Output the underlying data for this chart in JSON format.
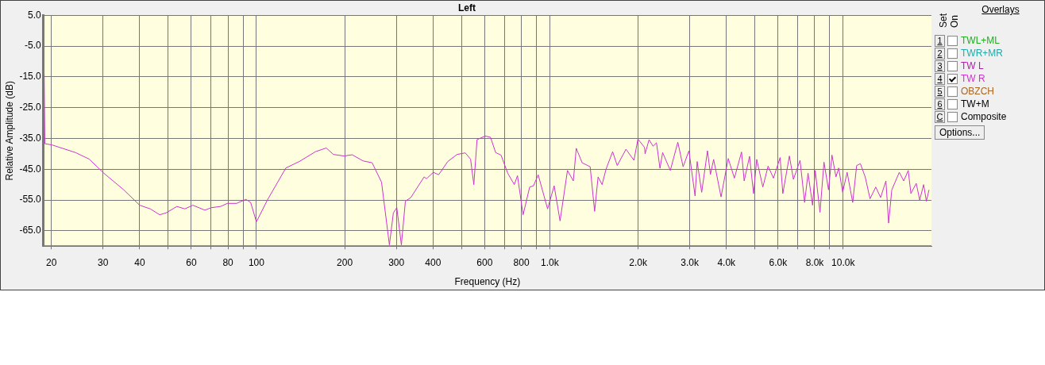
{
  "chart_data": {
    "type": "line",
    "title": "Left",
    "xlabel": "Frequency (Hz)",
    "ylabel": "Relative Amplitude (dB)",
    "legend_title": "Overlays",
    "legend": "right",
    "log": "x",
    "grid": true,
    "marker": "none",
    "line_style": "solid",
    "xlim": [
      18.8,
      20000
    ],
    "xticks": [
      20,
      30,
      40,
      {
        "value": 50,
        "label": null
      },
      60,
      {
        "value": 70,
        "label": null
      },
      80,
      {
        "value": 90,
        "label": null
      },
      100,
      200,
      300,
      400,
      {
        "value": 500,
        "label": null
      },
      600,
      {
        "value": 700,
        "label": null
      },
      800,
      {
        "value": 900,
        "label": null
      },
      {
        "value": 1000,
        "label": "1.0k"
      },
      {
        "value": 2000,
        "label": "2.0k"
      },
      {
        "value": 3000,
        "label": "3.0k"
      },
      {
        "value": 4000,
        "label": "4.0k"
      },
      {
        "value": 5000,
        "label": null
      },
      {
        "value": 6000,
        "label": "6.0k"
      },
      {
        "value": 7000,
        "label": null
      },
      {
        "value": 8000,
        "label": "8.0k"
      },
      {
        "value": 9000,
        "label": null
      },
      {
        "value": 10000,
        "label": "10.0k"
      }
    ],
    "ylim": [
      -70,
      5
    ],
    "yticks": [
      {
        "value": 5,
        "label": "5.0"
      },
      {
        "value": -5,
        "label": "-5.0"
      },
      {
        "value": -15,
        "label": "-15.0"
      },
      {
        "value": -25,
        "label": "-25.0"
      },
      {
        "value": -35,
        "label": "-35.0"
      },
      {
        "value": -45,
        "label": "-45.0"
      },
      {
        "value": -55,
        "label": "-55.0"
      },
      {
        "value": -65,
        "label": "-65.0"
      }
    ],
    "annotations": [
      "Set",
      "On",
      "1",
      "TWL+ML",
      "2",
      "TWR+MR",
      "3",
      "TW L",
      "4",
      "5",
      "OBZCH",
      "6",
      "TW+M",
      "C",
      "Composite",
      "Options..."
    ],
    "series": [
      {
        "name": "TW R",
        "color": "#cc33cc",
        "x": [
          18.9,
          19.0,
          20.1,
          24.2,
          26.9,
          30.2,
          35.3,
          40.0,
          43.5,
          46.8,
          49.2,
          53.6,
          57.0,
          60.7,
          66.7,
          70.2,
          75.5,
          79.6,
          85.6,
          92.1,
          95.6,
          100,
          109,
          126,
          140,
          159,
          173,
          183,
          199,
          212,
          231,
          248,
          267,
          284,
          293,
          301,
          312,
          322,
          336,
          373,
          380,
          401,
          418,
          449,
          483,
          515,
          537,
          551,
          565,
          602,
          628,
          654,
          682,
          719,
          757,
          776,
          811,
          854,
          880,
          913,
          983,
          1035,
          1084,
          1149,
          1203,
          1231,
          1289,
          1373,
          1422,
          1461,
          1508,
          1555,
          1638,
          1698,
          1819,
          1936,
          1998,
          2104,
          2113,
          2180,
          2249,
          2311,
          2375,
          2425,
          2576,
          2732,
          2848,
          2981,
          3128,
          3180,
          3295,
          3448,
          3529,
          3619,
          3836,
          4058,
          4259,
          4505,
          4599,
          4797,
          4950,
          5075,
          5325,
          5549,
          5788,
          6099,
          6229,
          6558,
          6770,
          7131,
          7390,
          7592,
          7867,
          8032,
          8339,
          8604,
          8916,
          9160,
          9453,
          9656,
          9963,
          10320,
          10780,
          11120,
          11450,
          11890,
          12350,
          12920,
          13420,
          13990,
          14290,
          14650,
          15540,
          16090,
          16670,
          17020,
          17750,
          18240,
          18810,
          19220,
          19620
        ],
        "values": [
          -14,
          -36.7,
          -37.1,
          -39.6,
          -41.7,
          -46.3,
          -51.7,
          -56.7,
          -57.9,
          -59.8,
          -59.2,
          -57.1,
          -57.9,
          -56.7,
          -58.3,
          -57.5,
          -57.1,
          -56.1,
          -56.1,
          -54.8,
          -55.8,
          -62.1,
          -55,
          -44.6,
          -42.5,
          -39.3,
          -38.1,
          -40.2,
          -40.7,
          -40.3,
          -42.3,
          -42.9,
          -49.2,
          -69.6,
          -59.2,
          -57.5,
          -69.6,
          -55.4,
          -54.2,
          -47.5,
          -48.1,
          -46,
          -46.8,
          -42.5,
          -40.2,
          -39.7,
          -41.7,
          -50,
          -35.4,
          -34.2,
          -34.6,
          -39.6,
          -40.4,
          -46.3,
          -50,
          -47.1,
          -59.8,
          -50.8,
          -50.4,
          -46.8,
          -57.9,
          -50.4,
          -61.8,
          -45.4,
          -48.8,
          -38.2,
          -42.9,
          -44.2,
          -58.7,
          -47.5,
          -50,
          -45,
          -39.3,
          -43.8,
          -38.5,
          -42.1,
          -35.2,
          -37.9,
          -40,
          -35.4,
          -37.5,
          -36.4,
          -44.7,
          -39.6,
          -45.4,
          -36.2,
          -44.2,
          -39,
          -53.7,
          -42.5,
          -52.5,
          -39,
          -46.7,
          -41.8,
          -54,
          -41.5,
          -47.9,
          -39.4,
          -48.8,
          -40.8,
          -52.9,
          -41.8,
          -50.8,
          -44,
          -47.9,
          -41.2,
          -52.9,
          -40.7,
          -48.3,
          -42.1,
          -55.8,
          -46.3,
          -56.7,
          -45.4,
          -59,
          -42.7,
          -51.7,
          -40.4,
          -47.5,
          -44.6,
          -52.5,
          -46,
          -55.8,
          -43.8,
          -43.2,
          -47.5,
          -54.6,
          -50.8,
          -54.2,
          -48.8,
          -62.5,
          -51.7,
          -46,
          -48.8,
          -45.4,
          -52.9,
          -49.6,
          -55,
          -50,
          -55.4,
          -51.7
        ]
      }
    ]
  }
}
